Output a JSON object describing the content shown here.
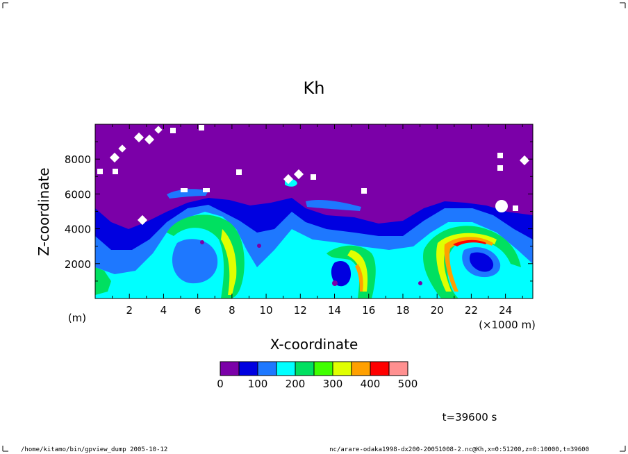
{
  "chart_data": {
    "type": "heatmap",
    "title": "Kh",
    "xlabel": "X-coordinate",
    "ylabel": "Z-coordinate",
    "x_unit_label": "(m)",
    "x_scale_label": "(×1000 m)",
    "xlim": [
      0,
      25.6
    ],
    "ylim": [
      0,
      10000
    ],
    "x_ticks": [
      2,
      4,
      6,
      8,
      10,
      12,
      14,
      16,
      18,
      20,
      22,
      24
    ],
    "x_tick_labels": [
      "2",
      "4",
      "6",
      "8",
      "10",
      "12",
      "14",
      "16",
      "18",
      "20",
      "22",
      "24"
    ],
    "y_ticks": [
      2000,
      4000,
      6000,
      8000
    ],
    "y_tick_labels": [
      "2000",
      "4000",
      "6000",
      "8000"
    ],
    "colorbar": {
      "levels": [
        0,
        50,
        100,
        150,
        200,
        250,
        300,
        350,
        400,
        450,
        500
      ],
      "tick_values": [
        0,
        100,
        200,
        300,
        400,
        500
      ],
      "tick_labels": [
        "0",
        "100",
        "200",
        "300",
        "400",
        "500"
      ],
      "colors": [
        "#7b00a8",
        "#0000e0",
        "#1e78ff",
        "#00ffff",
        "#00e060",
        "#40ff00",
        "#e0ff00",
        "#ffa000",
        "#ff0000",
        "#ff9090"
      ]
    },
    "time_label": "t=39600 s"
  },
  "footer": {
    "left": "/home/kitamo/bin/gpview_dump 2005-10-12",
    "right": "nc/arare-odaka1998-dx200-20051008-2.nc@Kh,x=0:51200,z=0:10000,t=39600"
  }
}
